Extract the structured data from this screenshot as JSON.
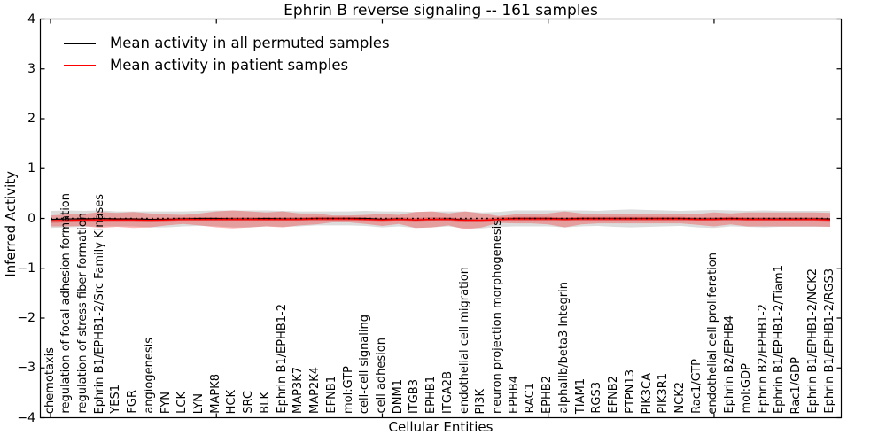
{
  "chart_data": {
    "type": "line",
    "title": "Ephrin B reverse signaling -- 161 samples",
    "xlabel": "Cellular Entities",
    "ylabel": "Inferred Activity",
    "ylim": [
      -4,
      4
    ],
    "y_ticks": [
      -4,
      -3,
      -2,
      -1,
      0,
      1,
      2,
      3,
      4
    ],
    "grid": false,
    "legend_position": "upper left",
    "legend": [
      {
        "label": "Mean activity in all permuted samples",
        "color": "#000000"
      },
      {
        "label": "Mean activity in patient samples",
        "color": "#ff0000"
      }
    ],
    "zero_line": {
      "y": 0,
      "style": "dotted",
      "color": "#000000"
    },
    "colors": {
      "permuted_line": "#000000",
      "patient_line": "#ff0000",
      "permuted_band": "rgba(128,128,128,0.28)",
      "patient_band_outer": "rgba(255,0,0,0.28)",
      "patient_band_inner": "rgba(225,0,0,0.38)"
    },
    "categories": [
      "chemotaxis",
      "regulation of focal adhesion formation",
      "regulation of stress fiber formation",
      "Ephrin B1/EPHB1-2/Src Family Kinases",
      "YES1",
      "FGR",
      "angiogenesis",
      "FYN",
      "LCK",
      "LYN",
      "MAPK8",
      "HCK",
      "SRC",
      "BLK",
      "Ephrin B1/EPHB1-2",
      "MAP3K7",
      "MAP2K4",
      "EFNB1",
      "mol:GTP",
      "cell-cell signaling",
      "cell adhesion",
      "DNM1",
      "ITGB3",
      "EPHB1",
      "ITGA2B",
      "endothelial cell migration",
      "PI3K",
      "neuron projection morphogenesis",
      "EPHB4",
      "RAC1",
      "EPHB2",
      "alphaIIb/beta3 Integrin",
      "TIAM1",
      "RGS3",
      "EFNB2",
      "PTPN13",
      "PIK3CA",
      "PIK3R1",
      "NCK2",
      "Rac1/GTP",
      "endothelial cell proliferation",
      "Ephrin B2/EPHB4",
      "mol:GDP",
      "Ephrin B2/EPHB1-2",
      "Ephrin B1/EPHB1-2/Tiam1",
      "Rac1/GDP",
      "Ephrin B1/EPHB1-2/NCK2",
      "Ephrin B1/EPHB1-2/RGS3"
    ],
    "series": [
      {
        "name": "Mean activity in all permuted samples",
        "color": "#000000",
        "values": [
          -0.02,
          -0.01,
          -0.01,
          0,
          -0.01,
          -0.01,
          -0.02,
          -0.02,
          -0.01,
          0,
          0,
          -0.01,
          -0.01,
          0,
          -0.01,
          -0.01,
          0,
          0,
          0,
          0,
          -0.02,
          -0.01,
          -0.03,
          -0.02,
          -0.01,
          -0.03,
          -0.04,
          -0.02,
          0,
          0,
          0,
          -0.01,
          0,
          0,
          0,
          0,
          0,
          0,
          0,
          -0.01,
          -0.01,
          0,
          -0.01,
          -0.01,
          -0.01,
          -0.01,
          -0.01,
          -0.01
        ],
        "band_halfwidth": [
          0.17,
          0.17,
          0.16,
          0.16,
          0.15,
          0.15,
          0.16,
          0.16,
          0.15,
          0.15,
          0.16,
          0.17,
          0.17,
          0.16,
          0.16,
          0.15,
          0.14,
          0.14,
          0.14,
          0.15,
          0.16,
          0.15,
          0.16,
          0.16,
          0.15,
          0.17,
          0.16,
          0.15,
          0.16,
          0.16,
          0.16,
          0.17,
          0.16,
          0.15,
          0.17,
          0.18,
          0.17,
          0.16,
          0.15,
          0.17,
          0.18,
          0.16,
          0.16,
          0.17,
          0.16,
          0.16,
          0.16,
          0.16
        ]
      },
      {
        "name": "Mean activity in patient samples",
        "color": "#ff0000",
        "values": [
          -0.05,
          -0.04,
          -0.03,
          -0.03,
          -0.03,
          -0.03,
          -0.04,
          -0.03,
          -0.02,
          -0.02,
          -0.02,
          -0.02,
          -0.02,
          -0.02,
          -0.02,
          -0.02,
          -0.01,
          -0.01,
          -0.01,
          -0.02,
          -0.03,
          -0.02,
          -0.03,
          -0.02,
          -0.02,
          -0.04,
          -0.04,
          -0.02,
          -0.01,
          -0.01,
          -0.01,
          -0.02,
          -0.01,
          -0.01,
          -0.01,
          -0.01,
          -0.01,
          -0.01,
          -0.01,
          -0.02,
          -0.02,
          -0.01,
          -0.02,
          -0.02,
          -0.02,
          -0.02,
          -0.02,
          -0.03
        ],
        "band_halfwidth": [
          0.11,
          0.12,
          0.12,
          0.16,
          0.14,
          0.16,
          0.14,
          0.11,
          0.09,
          0.12,
          0.16,
          0.18,
          0.16,
          0.14,
          0.16,
          0.12,
          0.11,
          0.07,
          0.07,
          0.09,
          0.12,
          0.09,
          0.16,
          0.16,
          0.12,
          0.18,
          0.14,
          0.07,
          0.09,
          0.09,
          0.11,
          0.16,
          0.11,
          0.09,
          0.09,
          0.09,
          0.09,
          0.09,
          0.09,
          0.11,
          0.14,
          0.11,
          0.14,
          0.14,
          0.14,
          0.14,
          0.14,
          0.14
        ],
        "inner_band_halfwidth": 0.04
      }
    ]
  }
}
